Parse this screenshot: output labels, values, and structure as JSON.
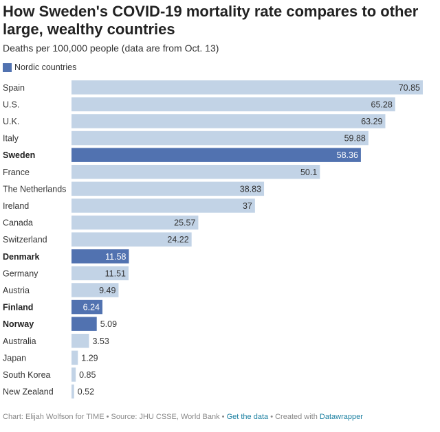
{
  "title": "How Sweden's COVID-19 mortality rate compares to other large, wealthy countries",
  "subtitle": "Deaths per 100,000 people (data are from Oct. 13)",
  "legend": {
    "label": "Nordic countries",
    "color": "#5172b0"
  },
  "colors": {
    "nordic": "#5172b0",
    "other": "#c2d3e6",
    "label_on_dark": "#ffffff",
    "label_on_light": "#333333"
  },
  "chart_data": {
    "type": "bar",
    "orientation": "horizontal",
    "title": "How Sweden's COVID-19 mortality rate compares to other large, wealthy countries",
    "subtitle": "Deaths per 100,000 people (data are from Oct. 13)",
    "xlabel": "",
    "ylabel": "",
    "xlim": [
      0,
      70.85
    ],
    "categories": [
      "Spain",
      "U.S.",
      "U.K.",
      "Italy",
      "Sweden",
      "France",
      "The Netherlands",
      "Ireland",
      "Canada",
      "Switzerland",
      "Denmark",
      "Germany",
      "Austria",
      "Finland",
      "Norway",
      "Australia",
      "Japan",
      "South Korea",
      "New Zealand"
    ],
    "values": [
      70.85,
      65.28,
      63.29,
      59.88,
      58.36,
      50.1,
      38.83,
      37,
      25.57,
      24.22,
      11.58,
      11.51,
      9.49,
      6.24,
      5.09,
      3.53,
      1.29,
      0.85,
      0.52
    ],
    "value_labels": [
      "70.85",
      "65.28",
      "63.29",
      "59.88",
      "58.36",
      "50.1",
      "38.83",
      "37",
      "25.57",
      "24.22",
      "11.58",
      "11.51",
      "9.49",
      "6.24",
      "5.09",
      "3.53",
      "1.29",
      "0.85",
      "0.52"
    ],
    "nordic": [
      false,
      false,
      false,
      false,
      true,
      false,
      false,
      false,
      false,
      false,
      true,
      false,
      false,
      true,
      true,
      false,
      false,
      false,
      false
    ],
    "legend": [
      "Nordic countries"
    ]
  },
  "footer": {
    "prefix": "Chart: Elijah Wolfson for TIME • Source: JHU CSSE, World Bank • ",
    "get_data_link": "Get the data",
    "separator": " • Created with ",
    "datawrapper_link": "Datawrapper"
  }
}
